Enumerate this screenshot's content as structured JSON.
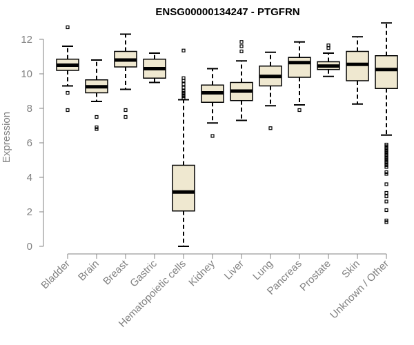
{
  "chart_data": {
    "type": "boxplot",
    "title": "ENSG00000134247 - PTGFRN",
    "xlabel": "",
    "ylabel": "Expression",
    "ylim": [
      0,
      13
    ],
    "yticks": [
      0,
      2,
      4,
      6,
      8,
      10,
      12
    ],
    "grid": false,
    "legend": "none",
    "colors": {
      "box_fill": "#efe8d0",
      "box_stroke": "#000000",
      "median": "#000000",
      "axis": "#808080",
      "tick_text": "#808080"
    },
    "categories": [
      "Bladder",
      "Brain",
      "Breast",
      "Gastric",
      "Hematopoietic cells",
      "Kidney",
      "Liver",
      "Lung",
      "Pancreas",
      "Prostate",
      "Skin",
      "Unknown / Other"
    ],
    "boxes": [
      {
        "category": "Bladder",
        "whisker_low": 9.3,
        "q1": 10.2,
        "median": 10.5,
        "q3": 10.85,
        "whisker_high": 11.6,
        "outliers": [
          12.7,
          8.9,
          7.9
        ]
      },
      {
        "category": "Brain",
        "whisker_low": 8.4,
        "q1": 8.9,
        "median": 9.25,
        "q3": 9.65,
        "whisker_high": 10.8,
        "outliers": [
          7.5,
          6.9,
          6.8
        ]
      },
      {
        "category": "Breast",
        "whisker_low": 9.1,
        "q1": 10.4,
        "median": 10.8,
        "q3": 11.3,
        "whisker_high": 12.3,
        "outliers": [
          7.9,
          7.5
        ]
      },
      {
        "category": "Gastric",
        "whisker_low": 9.5,
        "q1": 9.75,
        "median": 10.3,
        "q3": 10.85,
        "whisker_high": 11.2,
        "outliers": []
      },
      {
        "category": "Hematopoietic cells",
        "whisker_low": 0.0,
        "q1": 2.05,
        "median": 3.15,
        "q3": 4.7,
        "whisker_high": 8.5,
        "outliers": [
          11.35,
          9.75,
          9.6,
          9.4,
          9.2,
          9.0,
          8.9,
          8.8,
          8.7,
          8.6
        ]
      },
      {
        "category": "Kidney",
        "whisker_low": 7.15,
        "q1": 8.35,
        "median": 8.9,
        "q3": 9.35,
        "whisker_high": 10.3,
        "outliers": [
          6.4
        ]
      },
      {
        "category": "Liver",
        "whisker_low": 7.3,
        "q1": 8.45,
        "median": 9.0,
        "q3": 9.5,
        "whisker_high": 10.75,
        "outliers": [
          11.85,
          11.6,
          11.3
        ]
      },
      {
        "category": "Lung",
        "whisker_low": 8.15,
        "q1": 9.3,
        "median": 9.85,
        "q3": 10.45,
        "whisker_high": 11.25,
        "outliers": [
          6.85
        ]
      },
      {
        "category": "Pancreas",
        "whisker_low": 8.2,
        "q1": 9.8,
        "median": 10.65,
        "q3": 10.95,
        "whisker_high": 11.85,
        "outliers": [
          7.9
        ]
      },
      {
        "category": "Prostate",
        "whisker_low": 9.85,
        "q1": 10.25,
        "median": 10.45,
        "q3": 10.7,
        "whisker_high": 11.2,
        "outliers": [
          11.65,
          11.5
        ]
      },
      {
        "category": "Skin",
        "whisker_low": 8.25,
        "q1": 9.6,
        "median": 10.55,
        "q3": 11.3,
        "whisker_high": 12.15,
        "outliers": []
      },
      {
        "category": "Unknown / Other",
        "whisker_low": 6.45,
        "q1": 9.15,
        "median": 10.25,
        "q3": 11.05,
        "whisker_high": 12.95,
        "outliers": [
          5.9,
          5.8,
          5.7,
          5.6,
          5.5,
          5.4,
          5.3,
          5.2,
          5.1,
          5.0,
          4.9,
          4.8,
          4.7,
          4.6,
          4.3,
          4.2,
          3.6,
          3.1,
          2.9,
          2.6,
          2.1,
          1.5,
          1.4
        ]
      }
    ]
  }
}
